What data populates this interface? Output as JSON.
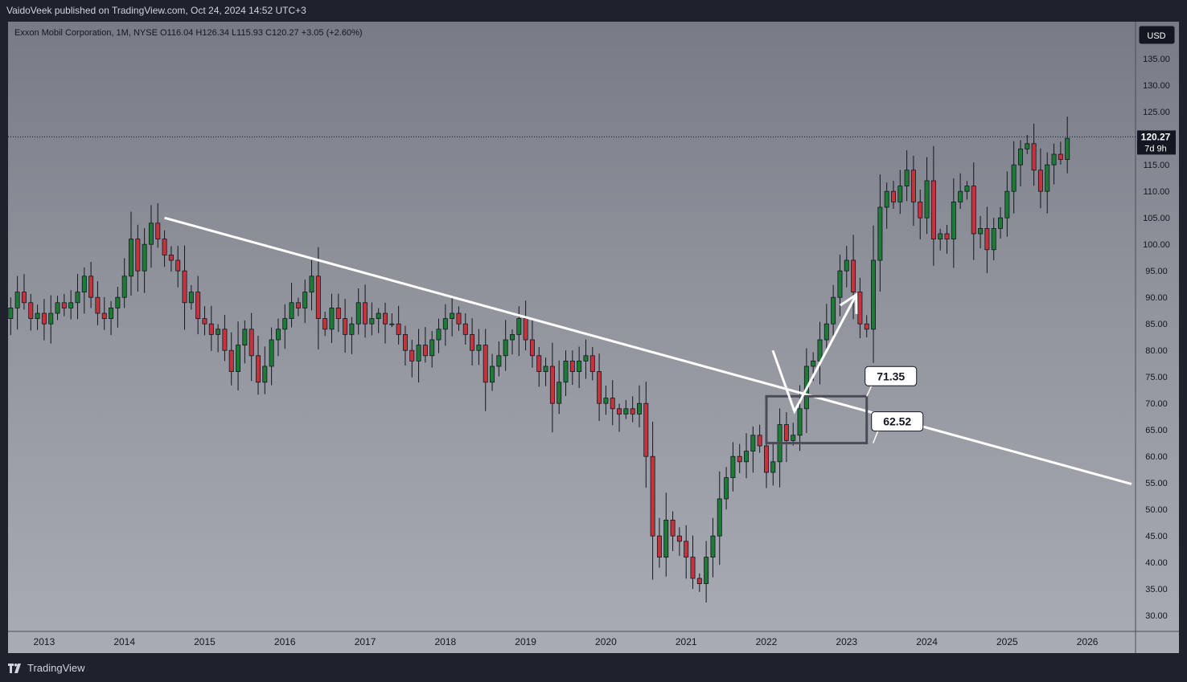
{
  "header": {
    "published_by": "VaidoVeek published on TradingView.com, Oct 24, 2024 14:52 UTC+3"
  },
  "symbol_bar": {
    "text": "Exxon Mobil Corporation, 1M, NYSE  O116.04  H126.34  L115.93  C120.27  +3.05 (+2.60%)"
  },
  "footer": {
    "brand": "TradingView"
  },
  "colors": {
    "up": "#1e7b36",
    "down": "#c4343b",
    "wick": "#131722",
    "annotation": "#ffffff",
    "box": "#4a4d57"
  },
  "chart_data": {
    "type": "candlestick",
    "title": "",
    "currency_label": "USD",
    "last_price_label": "120.27",
    "countdown_label": "7d 9h",
    "y_ticks": [
      "135.00",
      "130.00",
      "125.00",
      "120.00",
      "115.00",
      "110.00",
      "105.00",
      "100.00",
      "95.00",
      "90.00",
      "85.00",
      "80.00",
      "75.00",
      "70.00",
      "65.00",
      "60.00",
      "55.00",
      "50.00",
      "45.00",
      "40.00",
      "35.00",
      "30.00"
    ],
    "x_ticks": [
      "2013",
      "2014",
      "2015",
      "2016",
      "2017",
      "2018",
      "2019",
      "2020",
      "2021",
      "2022",
      "2023",
      "2024",
      "2025",
      "2026"
    ],
    "ylim": [
      27,
      142
    ],
    "xlim": [
      2012.55,
      2026.6
    ],
    "annotations": {
      "trendline": {
        "start": [
          2014.5,
          105
        ],
        "end": [
          2026.55,
          54.8
        ]
      },
      "box": {
        "x0": 2022.0,
        "x1": 2023.25,
        "top": 71.35,
        "bottom": 62.52
      },
      "label_top": "71.35",
      "label_bottom": "62.52",
      "arrow_path": [
        [
          2022.08,
          80
        ],
        [
          2022.35,
          68.5
        ],
        [
          2023.12,
          90.5
        ]
      ]
    },
    "candles": {
      "start": 2012.5,
      "close": [
        86,
        88,
        91,
        89,
        86,
        87,
        85,
        87,
        89,
        88,
        89,
        91,
        94,
        90,
        87,
        86,
        88,
        90,
        94,
        101,
        95,
        100,
        104,
        101,
        98,
        97,
        95,
        89,
        91,
        86,
        85,
        83,
        84,
        80,
        76,
        81,
        84,
        79,
        74,
        77,
        82,
        84,
        86,
        89,
        88,
        91,
        94,
        86,
        84,
        88,
        86,
        83,
        85,
        89,
        85,
        86,
        87,
        85,
        85,
        83,
        80,
        78,
        81,
        79,
        82,
        84,
        86,
        87,
        85,
        83,
        80,
        81,
        74,
        77,
        79,
        82,
        83,
        86,
        82,
        79,
        76,
        77,
        70,
        74,
        78,
        76,
        78,
        79,
        76,
        70,
        71,
        69,
        68,
        69,
        68,
        70,
        60,
        45,
        41,
        48,
        45,
        44,
        41,
        37,
        36,
        41,
        45,
        52,
        56,
        60,
        59,
        61,
        64,
        62,
        57,
        59,
        66,
        63,
        64,
        69,
        77,
        78,
        82,
        85,
        90,
        95,
        97,
        91,
        85,
        84,
        97,
        107,
        110,
        108,
        111,
        114,
        108,
        105,
        112,
        101,
        102,
        101,
        108,
        110,
        111,
        102,
        103,
        99,
        103,
        105,
        110,
        115,
        118,
        119,
        114,
        110,
        115,
        117,
        116,
        120
      ]
    }
  }
}
